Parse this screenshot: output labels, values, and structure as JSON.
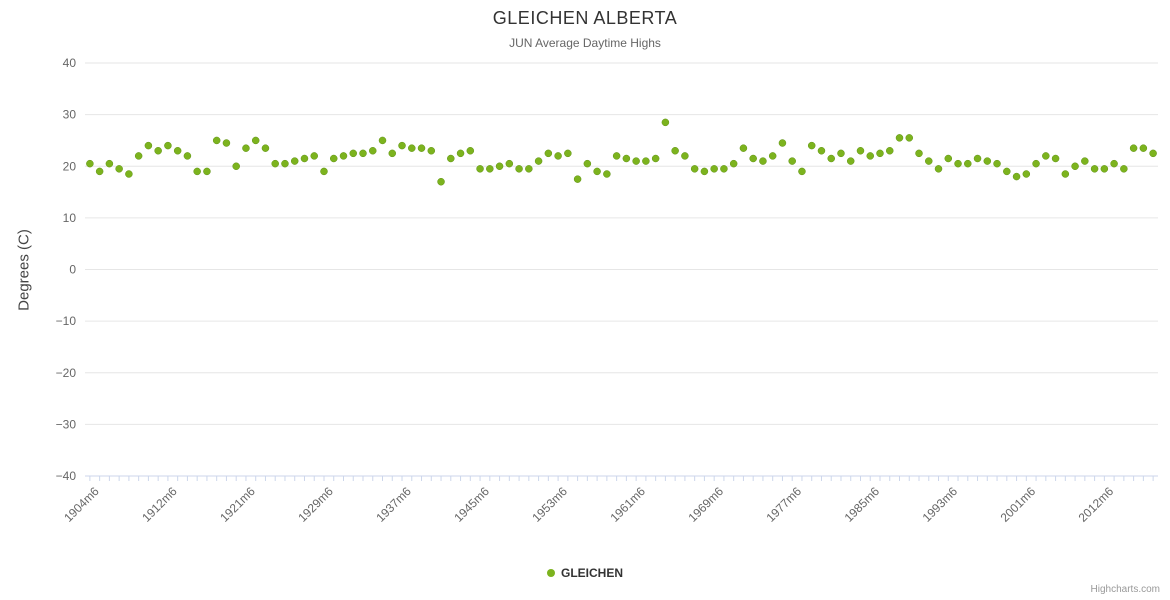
{
  "title": "GLEICHEN ALBERTA",
  "subtitle": "JUN Average Daytime Highs",
  "y_axis_title": "Degrees (C)",
  "legend": {
    "series_label": "GLEICHEN"
  },
  "credits": "Highcharts.com",
  "colors": {
    "point": "#7cb31e",
    "point_edge": "#5f9214",
    "grid": "#e6e6e6",
    "axis_line": "#ccd6eb",
    "axis_label": "#666666",
    "title": "#333333",
    "subtitle": "#666666"
  },
  "chart_data": {
    "type": "scatter",
    "title": "GLEICHEN ALBERTA",
    "subtitle": "JUN Average Daytime Highs",
    "xlabel": "",
    "ylabel": "Degrees (C)",
    "ylim": [
      -40,
      40
    ],
    "y_tick_interval": 10,
    "grid": true,
    "legend_position": "bottom",
    "series_name": "GLEICHEN",
    "x_tick_labels": [
      "1904m6",
      "1912m6",
      "1921m6",
      "1929m6",
      "1937m6",
      "1945m6",
      "1953m6",
      "1961m6",
      "1969m6",
      "1977m6",
      "1985m6",
      "1993m6",
      "2001m6",
      "2012m6"
    ],
    "categories": [
      "1903m6",
      "1904m6",
      "1905m6",
      "1906m6",
      "1907m6",
      "1908m6",
      "1909m6",
      "1910m6",
      "1911m6",
      "1912m6",
      "1913m6",
      "1914m6",
      "1915m6",
      "1916m6",
      "1918m6",
      "1919m6",
      "1920m6",
      "1921m6",
      "1922m6",
      "1923m6",
      "1924m6",
      "1925m6",
      "1926m6",
      "1927m6",
      "1928m6",
      "1929m6",
      "1930m6",
      "1931m6",
      "1932m6",
      "1933m6",
      "1934m6",
      "1935m6",
      "1936m6",
      "1937m6",
      "1938m6",
      "1939m6",
      "1940m6",
      "1941m6",
      "1942m6",
      "1943m6",
      "1944m6",
      "1945m6",
      "1946m6",
      "1947m6",
      "1948m6",
      "1949m6",
      "1950m6",
      "1951m6",
      "1952m6",
      "1953m6",
      "1954m6",
      "1955m6",
      "1956m6",
      "1957m6",
      "1958m6",
      "1959m6",
      "1960m6",
      "1961m6",
      "1962m6",
      "1963m6",
      "1964m6",
      "1965m6",
      "1966m6",
      "1967m6",
      "1968m6",
      "1969m6",
      "1970m6",
      "1971m6",
      "1972m6",
      "1973m6",
      "1974m6",
      "1975m6",
      "1976m6",
      "1977m6",
      "1978m6",
      "1979m6",
      "1980m6",
      "1981m6",
      "1982m6",
      "1983m6",
      "1984m6",
      "1985m6",
      "1986m6",
      "1987m6",
      "1988m6",
      "1989m6",
      "1990m6",
      "1991m6",
      "1992m6",
      "1993m6",
      "1994m6",
      "1995m6",
      "1996m6",
      "1997m6",
      "1998m6",
      "1999m6",
      "2000m6",
      "2001m6",
      "2002m6",
      "2003m6",
      "2005m6",
      "2007m6",
      "2008m6",
      "2009m6",
      "2011m6",
      "2012m6",
      "2013m6",
      "2014m6",
      "2015m6",
      "2016m6"
    ],
    "values": [
      20.5,
      19,
      20.5,
      19.5,
      18.5,
      22,
      24,
      23,
      24,
      23,
      22,
      19,
      19,
      25,
      24.5,
      20,
      23.5,
      25,
      23.5,
      20.5,
      20.5,
      21,
      21.5,
      22,
      19,
      21.5,
      22,
      22.5,
      22.5,
      23,
      25,
      22.5,
      24,
      23.5,
      23.5,
      23,
      17,
      21.5,
      22.5,
      23,
      19.5,
      19.5,
      20,
      20.5,
      19.5,
      19.5,
      21,
      22.5,
      22,
      22.5,
      17.5,
      20.5,
      19,
      18.5,
      22,
      21.5,
      21,
      21,
      21.5,
      28.5,
      23,
      22,
      19.5,
      19,
      19.5,
      19.5,
      20.5,
      23.5,
      21.5,
      21,
      22,
      24.5,
      21,
      19,
      24,
      23,
      21.5,
      22.5,
      21,
      23,
      22,
      22.5,
      23,
      25.5,
      25.5,
      22.5,
      21,
      19.5,
      21.5,
      20.5,
      20.5,
      21.5,
      21,
      20.5,
      19,
      18,
      18.5,
      20.5,
      22,
      21.5,
      18.5,
      20,
      21,
      19.5,
      19.5,
      20.5,
      19.5,
      23.5,
      23.5,
      22.5
    ]
  }
}
